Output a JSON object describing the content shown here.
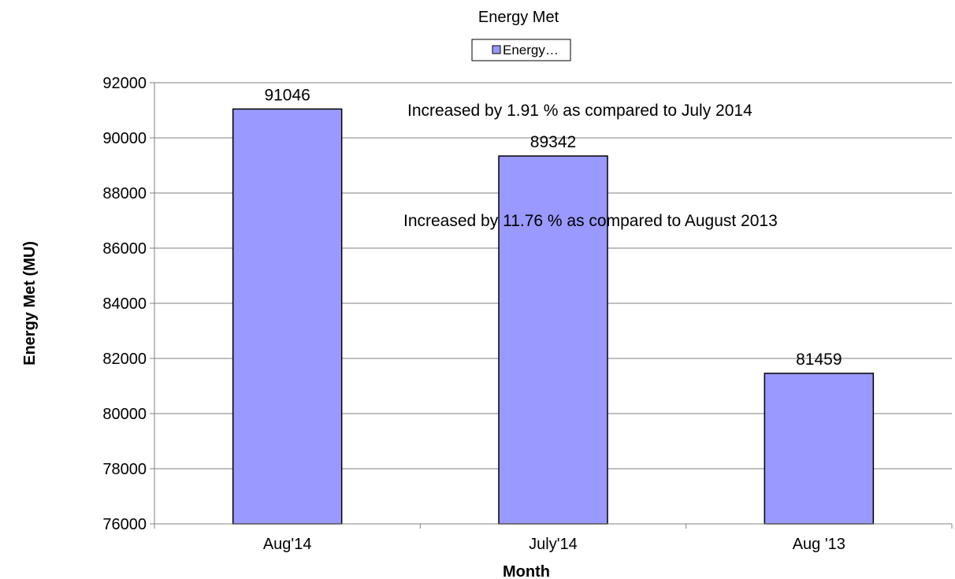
{
  "chart_data": {
    "type": "bar",
    "title": "Energy Met",
    "xlabel": "Month",
    "ylabel": "Energy Met (MU)",
    "categories": [
      "Aug'14",
      "July'14",
      "Aug '13"
    ],
    "series": [
      {
        "name": "Energy…",
        "values": [
          91046,
          89342,
          81459
        ]
      }
    ],
    "data_labels": [
      "91046",
      "89342",
      "81459"
    ],
    "ylim": [
      76000,
      92000
    ],
    "yticks": [
      76000,
      78000,
      80000,
      82000,
      84000,
      86000,
      88000,
      90000,
      92000
    ],
    "grid": true,
    "legend_position": "top",
    "bar_color": "#9999ff",
    "annotations": [
      "Increased by 1.91 %  as compared to July 2014",
      "Increased by  11.76 % as compared to August 2013"
    ]
  }
}
